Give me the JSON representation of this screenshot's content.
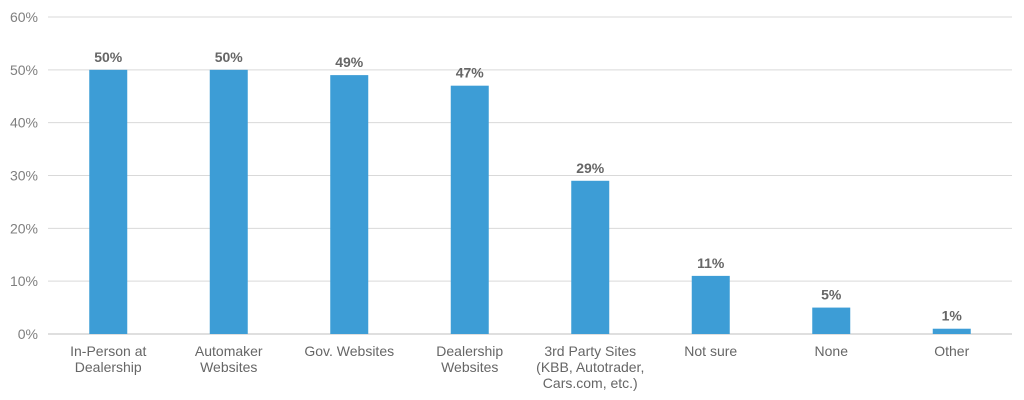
{
  "chart_data": {
    "type": "bar",
    "categories": [
      "In-Person at Dealership",
      "Automaker Websites",
      "Gov. Websites",
      "Dealership Websites",
      "3rd Party Sites (KBB, Autotrader, Cars.com, etc.)",
      "Not sure",
      "None",
      "Other"
    ],
    "category_lines": [
      [
        "In-Person at",
        "Dealership"
      ],
      [
        "Automaker",
        "Websites"
      ],
      [
        "Gov. Websites"
      ],
      [
        "Dealership",
        "Websites"
      ],
      [
        "3rd Party Sites",
        "(KBB, Autotrader,",
        "Cars.com, etc.)"
      ],
      [
        "Not sure"
      ],
      [
        "None"
      ],
      [
        "Other"
      ]
    ],
    "values": [
      50,
      50,
      49,
      47,
      29,
      11,
      5,
      1
    ],
    "data_labels": [
      "50%",
      "50%",
      "49%",
      "47%",
      "29%",
      "11%",
      "5%",
      "1%"
    ],
    "ylim": [
      0,
      60
    ],
    "yticks": [
      0,
      10,
      20,
      30,
      40,
      50,
      60
    ],
    "ytick_labels": [
      "0%",
      "10%",
      "20%",
      "30%",
      "40%",
      "50%",
      "60%"
    ],
    "grid": true,
    "legend": "none",
    "title": "",
    "xlabel": "",
    "ylabel": ""
  },
  "colors": {
    "bar": "#3d9dd6",
    "grid": "#d9d9d9",
    "axis": "#bfbfbf"
  }
}
